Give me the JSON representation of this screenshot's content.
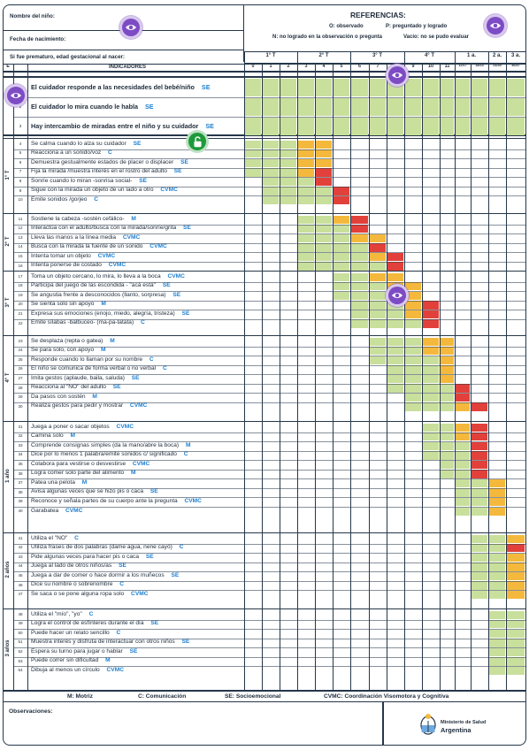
{
  "header": {
    "child_name_label": "Nombre del niño:",
    "birth_date_label": "Fecha de nacimiento:",
    "premature_label": "Si fue prematuro, edad gestacional al nacer:",
    "references_title": "REFERENCIAS:",
    "ref_o": "O: observado",
    "ref_p": "P: preguntado y logrado",
    "ref_n": "N: no logrado en la observación o pregunta",
    "ref_vacio": "Vacío: no se pudo evaluar"
  },
  "columns": {
    "e_label": "E",
    "indicators_label": "INDICADORES",
    "groups": [
      "1° T",
      "2° T",
      "3° T",
      "4° T",
      "1 a.",
      "2 a.",
      "3 a."
    ],
    "ages": [
      "0",
      "1",
      "2",
      "3",
      "4",
      "5",
      "6",
      "7",
      "8",
      "9",
      "10",
      "11",
      "12/17",
      "18/23",
      "24/35",
      "36/47"
    ]
  },
  "sections": [
    {
      "label": "",
      "rows": [
        {
          "n": "1",
          "text": "El cuidador responde a las necesidades del bebé/niño",
          "area": "SE"
        },
        {
          "n": "2",
          "text": "El cuidador lo mira cuando le habla",
          "area": "SE"
        },
        {
          "n": "3",
          "text": "Hay intercambio de miradas entre el niño y su cuidador",
          "area": "SE"
        }
      ]
    },
    {
      "label": "1° T",
      "rows": [
        {
          "n": "4",
          "text": "Se calma cuando lo alza su cuidador",
          "area": "SE"
        },
        {
          "n": "5",
          "text": "Reacciona a un sonido/voz",
          "area": "C"
        },
        {
          "n": "6",
          "text": "Demuestra gestualmente estados de placer o displacer",
          "area": "SE"
        },
        {
          "n": "7",
          "text": "Fija la mirada /muestra interés en el rostro del adulto",
          "area": "SE"
        },
        {
          "n": "8",
          "text": "Sonríe cuando lo miran -sonrisa social-",
          "area": "SE"
        },
        {
          "n": "9",
          "text": "Sigue con la mirada un objeto de un lado a otro",
          "area": "CVMC"
        },
        {
          "n": "10",
          "text": "Emite sonidos /gorjeo",
          "area": "C"
        }
      ]
    },
    {
      "label": "2° T",
      "rows": [
        {
          "n": "11",
          "text": "Sostiene la cabeza -sostén cefálico-",
          "area": "M"
        },
        {
          "n": "12",
          "text": "Interactúa con el adulto/busca con la mirada/sonríe/grita",
          "area": "SE"
        },
        {
          "n": "13",
          "text": "Lleva las manos a la línea media",
          "area": "CVMC"
        },
        {
          "n": "14",
          "text": "Busca con la mirada la fuente de un sonido",
          "area": "CVMC"
        },
        {
          "n": "15",
          "text": "Intenta tomar un objeto",
          "area": "CVMC"
        },
        {
          "n": "16",
          "text": "Intenta ponerse de costado",
          "area": "CVMC"
        }
      ]
    },
    {
      "label": "3° T",
      "rows": [
        {
          "n": "17",
          "text": "Toma un objeto cercano, lo mira, lo lleva a la boca",
          "area": "CVMC"
        },
        {
          "n": "18",
          "text": "Participa del juego de las escondida - \"acá está\"",
          "area": "SE"
        },
        {
          "n": "19",
          "text": "Se angustia frente a desconocidos (llanto, sorpresa)",
          "area": "SE"
        },
        {
          "n": "20",
          "text": "Se sienta solo sin apoyo",
          "area": "M"
        },
        {
          "n": "21",
          "text": "Expresa sus emociones (enojo, miedo, alegría, tristeza)",
          "area": "SE"
        },
        {
          "n": "22",
          "text": "Emite sílabas -balbuceo- (ma-pa-tatata)",
          "area": "C"
        }
      ]
    },
    {
      "label": "4° T",
      "rows": [
        {
          "n": "23",
          "text": "Se desplaza (repta o gatea)",
          "area": "M"
        },
        {
          "n": "24",
          "text": "Se para solo, con apoyo",
          "area": "M"
        },
        {
          "n": "25",
          "text": "Responde cuando lo llaman por su nombre",
          "area": "C"
        },
        {
          "n": "26",
          "text": "El niño se comunica de forma verbal o no verbal",
          "area": "C"
        },
        {
          "n": "27",
          "text": "Imita gestos (aplaude, baila, saluda)",
          "area": "SE"
        },
        {
          "n": "28",
          "text": "Reacciona al \"NO\" del adulto",
          "area": "SE"
        },
        {
          "n": "29",
          "text": "Da pasos con sostén",
          "area": "M"
        },
        {
          "n": "30",
          "text": "Realiza gestos para pedir y mostrar",
          "area": "CVMC"
        }
      ]
    },
    {
      "label": "1 año",
      "rows": [
        {
          "n": "31",
          "text": "Juega a poner o sacar objetos",
          "area": "CVMC"
        },
        {
          "n": "32",
          "text": "Camina solo",
          "area": "M"
        },
        {
          "n": "33",
          "text": "Comprende consignas simples (da la mano/abre la boca)",
          "area": "M"
        },
        {
          "n": "34",
          "text": "Dice por lo menos 1 palabra/emite sonidos c/ significado",
          "area": "C"
        },
        {
          "n": "35",
          "text": "Colabora para vestirse o desvestirse",
          "area": "CVMC"
        },
        {
          "n": "36",
          "text": "Logra comer solo parte del alimento",
          "area": "M"
        },
        {
          "n": "37",
          "text": "Patea una pelota",
          "area": "M"
        },
        {
          "n": "38",
          "text": "Avisa algunas veces que se hizo pis o caca",
          "area": "SE"
        },
        {
          "n": "39",
          "text": "Reconoce y señala partes de su cuerpo ante la pregunta",
          "area": "CVMC"
        },
        {
          "n": "40",
          "text": "Garabatea",
          "area": "CVMC"
        }
      ]
    },
    {
      "label": "2 años",
      "rows": [
        {
          "n": "41",
          "text": "Utiliza el \"NO\"",
          "area": "C"
        },
        {
          "n": "42",
          "text": "Utiliza frases de dos palabras (dame agua, nene cayó)",
          "area": "C"
        },
        {
          "n": "43",
          "text": "Pide algunas veces para hacer pis o caca",
          "area": "SE"
        },
        {
          "n": "44",
          "text": "Juega al lado de otros niños/as",
          "area": "SE"
        },
        {
          "n": "45",
          "text": "Juega a dar de comer o hace dormir a los muñecos",
          "area": "SE"
        },
        {
          "n": "46",
          "text": "Dice su nombre o sobrenombre",
          "area": "C"
        },
        {
          "n": "47",
          "text": "Se saca o se pone alguna ropa solo",
          "area": "CVMC"
        }
      ]
    },
    {
      "label": "3 años",
      "rows": [
        {
          "n": "48",
          "text": "Utiliza el \"mío\", \"yo\"",
          "area": "C"
        },
        {
          "n": "49",
          "text": "Logra el control de esfínteres durante el día",
          "area": "SE"
        },
        {
          "n": "50",
          "text": "Puede hacer un relato sencillo",
          "area": "C"
        },
        {
          "n": "51",
          "text": "Muestra interés y disfruta de interactuar con otros niños",
          "area": "SE"
        },
        {
          "n": "52",
          "text": "Espera su turno para jugar o hablar",
          "area": "SE"
        },
        {
          "n": "53",
          "text": "Puede correr sin dificultad",
          "area": "M"
        },
        {
          "n": "54",
          "text": "Dibuja al menos un círculo",
          "area": "CVMC"
        }
      ]
    }
  ],
  "legend": {
    "m": "M: Motriz",
    "c": "C: Comunicación",
    "se": "SE: Socioemocional",
    "cvmc": "CVMC: Coordinación Visomotora y Cognitiva"
  },
  "observations_label": "Observaciones:",
  "logo": {
    "line1": "Ministerio de Salud",
    "line2": "Argentina"
  },
  "colors": {
    "green": "#c9df9c",
    "yellow": "#f4b93c",
    "red": "#e1413a",
    "border": "#26374a",
    "accent": "#1e7fd0"
  }
}
